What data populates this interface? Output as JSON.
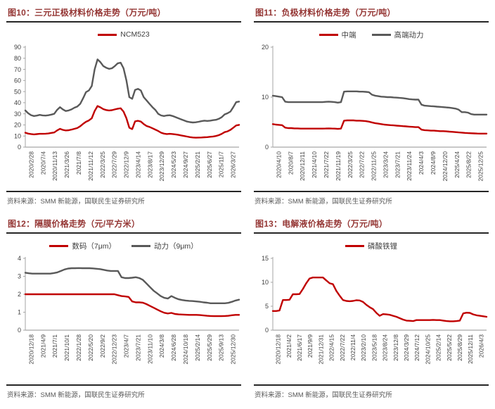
{
  "page": {
    "background": "#ffffff"
  },
  "palette": {
    "title_red": "#953735",
    "line_red": "#C00000",
    "line_gray": "#595959",
    "rule_dark": "#262626",
    "axis_gray": "#A6A6A6",
    "tick_text": "#404040",
    "source_gray": "#595959"
  },
  "chart_data": [
    {
      "id": "图10",
      "type": "line",
      "title": "图10：三元正极材料价格走势（万元/吨）",
      "source": "资料来源：SMM 新能源，国联民生证券研究所",
      "ylim": [
        0,
        90
      ],
      "ytick_step": 10,
      "grid": false,
      "legend_position": "top-center",
      "x_labels": [
        "2020/2/28",
        "2020/7/4",
        "2020/11/13",
        "2021/3/26",
        "2021/7/8",
        "2021/11/12",
        "2022/3/25",
        "2022/7/29",
        "2022/12/9",
        "2023/4/14",
        "2023/8/17",
        "2023/12/29",
        "2024/5/23",
        "2024/9/27",
        "2025/2/21",
        "2025/6/27",
        "2025/11/7",
        "2026/3/27"
      ],
      "series": [
        {
          "name": "",
          "color": "#595959",
          "in_legend": false,
          "values": [
            33,
            30.5,
            28.8,
            28,
            28.4,
            29,
            28.6,
            28.4,
            28.7,
            29.3,
            30,
            33.5,
            36,
            34,
            32.5,
            33,
            34,
            35.5,
            36.5,
            39,
            44,
            49.5,
            51,
            55,
            70,
            79,
            76.5,
            73,
            71.5,
            70.5,
            71,
            73,
            75.5,
            76,
            71,
            60,
            45,
            43.5,
            51.5,
            52.5,
            51,
            45,
            42,
            39,
            36,
            33.5,
            30,
            28.5,
            28,
            28.5,
            28.7,
            28,
            27,
            26,
            25,
            24,
            23,
            22.5,
            22.2,
            22.4,
            22.8,
            23.4,
            23.8,
            23.6,
            23.8,
            24.3,
            24.6,
            25.5,
            27,
            29.5,
            30.5,
            32,
            36,
            40.5,
            41
          ]
        },
        {
          "name": "NCM523",
          "color": "#C00000",
          "in_legend": true,
          "values": [
            13,
            12.2,
            11.8,
            11.5,
            11.7,
            12,
            12,
            12.1,
            12.3,
            12.8,
            13.2,
            15,
            16.5,
            15.5,
            15,
            15.2,
            15.8,
            16.5,
            17.2,
            18.8,
            21,
            22.8,
            24,
            26,
            32.5,
            37,
            35.8,
            34.2,
            33.4,
            33,
            33.3,
            34,
            34.6,
            35,
            32,
            26,
            17.5,
            16.2,
            23.2,
            23.7,
            23,
            20.8,
            19,
            18.2,
            17,
            15.8,
            14.5,
            13,
            12.2,
            11.8,
            12,
            11.8,
            11.5,
            11,
            10.5,
            10,
            9.5,
            9,
            8.7,
            8.5,
            8.6,
            8.7,
            8.9,
            9,
            9.3,
            9.6,
            10,
            10.8,
            12,
            13.5,
            14.2,
            15.5,
            17.5,
            19.5,
            20
          ]
        }
      ]
    },
    {
      "id": "图11",
      "type": "line",
      "title": "图11：负极材料价格走势（万元/吨）",
      "source": "资料来源：SMM 新能源，国联民生证券研究所",
      "ylim": [
        0,
        20
      ],
      "ytick_step": 10,
      "grid": false,
      "legend_position": "top-center",
      "x_labels": [
        "2020/4/10",
        "2020/8/7",
        "2020/12/11",
        "2021/4/10",
        "2021/7/22",
        "2021/11/19",
        "2022/3/25",
        "2022/7/22",
        "2022/11/25",
        "2023/3/24",
        "2023/7/21",
        "2023/11/24",
        "2024/4/3",
        "2024/8/9",
        "2024/12/20",
        "2025/4/24",
        "2025/8/22",
        "2025/12/25"
      ],
      "series": [
        {
          "name": "中端",
          "color": "#C00000",
          "in_legend": true,
          "values": [
            4.6,
            4.5,
            4.45,
            4.4,
            3.9,
            3.8,
            3.8,
            3.75,
            3.75,
            3.7,
            3.7,
            3.7,
            3.7,
            3.7,
            3.7,
            3.7,
            3.7,
            3.72,
            3.75,
            3.72,
            3.7,
            3.65,
            3.7,
            5.3,
            5.35,
            5.35,
            5.35,
            5.3,
            5.3,
            5.25,
            5.2,
            5.1,
            4.95,
            4.8,
            4.7,
            4.6,
            4.5,
            4.45,
            4.4,
            4.35,
            4.3,
            4.25,
            4.2,
            4.15,
            4.1,
            4.05,
            4.0,
            4.0,
            3.5,
            3.4,
            3.35,
            3.3,
            3.3,
            3.25,
            3.2,
            3.2,
            3.15,
            3.1,
            3.05,
            3.0,
            2.95,
            2.9,
            2.85,
            2.8,
            2.78,
            2.75,
            2.72,
            2.7,
            2.7,
            2.7
          ]
        },
        {
          "name": "高端动力",
          "color": "#595959",
          "in_legend": true,
          "values": [
            10.3,
            10.2,
            10.1,
            10.0,
            9.1,
            9.0,
            9.0,
            9.0,
            9.0,
            9.0,
            9.0,
            9.0,
            9.0,
            9.0,
            9.0,
            9.0,
            9.0,
            9.05,
            9.1,
            9.05,
            9.0,
            8.9,
            9.0,
            11.1,
            11.15,
            11.15,
            11.15,
            11.15,
            11.1,
            11.1,
            11.05,
            11.0,
            10.5,
            10.3,
            10.2,
            10.1,
            10.05,
            10.0,
            10.0,
            9.95,
            9.9,
            9.85,
            9.8,
            9.7,
            9.6,
            9.55,
            9.5,
            9.5,
            8.5,
            8.3,
            8.25,
            8.2,
            8.15,
            8.1,
            8.05,
            8.0,
            7.95,
            7.9,
            7.8,
            7.7,
            7.5,
            7.0,
            7.0,
            6.9,
            6.6,
            6.5,
            6.5,
            6.5,
            6.5,
            6.5
          ]
        }
      ]
    },
    {
      "id": "图12",
      "type": "line",
      "title": "图12：隔膜价格走势（元/平方米）",
      "source": "资料来源：SMM 新能源，国联民生证券研究所",
      "ylim": [
        0,
        4
      ],
      "ytick_step": 1,
      "grid": false,
      "legend_position": "top-center",
      "x_labels": [
        "2020/12/18",
        "2021/4/9",
        "2021/7/1",
        "2021/10/1",
        "2022/1/28",
        "2022/5/20",
        "2022/9/2",
        "2022/12/23",
        "2023/4/7",
        "2023/7/21",
        "2023/11/10",
        "2024/3/8",
        "2024/6/28",
        "2024/10/18",
        "2025/2/14",
        "2025/5/29",
        "2025/9/13",
        "2025/12/30"
      ],
      "series": [
        {
          "name": "数码（7μm）",
          "color": "#C00000",
          "in_legend": true,
          "values": [
            2.0,
            2.0,
            2.0,
            2.0,
            2.0,
            2.0,
            2.0,
            2.0,
            2.0,
            2.0,
            2.0,
            2.0,
            2.0,
            2.0,
            2.0,
            2.0,
            2.0,
            2.0,
            2.0,
            2.0,
            2.0,
            2.0,
            2.0,
            2.0,
            2.0,
            2.0,
            1.95,
            1.9,
            1.88,
            1.85,
            1.6,
            1.55,
            1.55,
            1.53,
            1.45,
            1.35,
            1.25,
            1.15,
            1.05,
            0.97,
            0.93,
            0.96,
            0.9,
            0.88,
            0.87,
            0.86,
            0.85,
            0.85,
            0.85,
            0.84,
            0.82,
            0.8,
            0.79,
            0.78,
            0.78,
            0.78,
            0.79,
            0.8,
            0.83,
            0.85,
            0.85
          ]
        },
        {
          "name": "动力（9μm）",
          "color": "#595959",
          "in_legend": true,
          "values": [
            3.2,
            3.17,
            3.15,
            3.15,
            3.15,
            3.15,
            3.15,
            3.15,
            3.18,
            3.22,
            3.3,
            3.38,
            3.43,
            3.45,
            3.45,
            3.46,
            3.45,
            3.45,
            3.45,
            3.44,
            3.42,
            3.4,
            3.36,
            3.32,
            3.3,
            3.3,
            3.3,
            2.95,
            2.9,
            2.9,
            2.92,
            2.95,
            2.9,
            2.8,
            2.6,
            2.4,
            2.2,
            2.05,
            1.9,
            1.8,
            1.76,
            1.9,
            1.8,
            1.72,
            1.68,
            1.65,
            1.63,
            1.62,
            1.6,
            1.58,
            1.55,
            1.53,
            1.5,
            1.5,
            1.5,
            1.5,
            1.5,
            1.52,
            1.58,
            1.65,
            1.7
          ]
        }
      ]
    },
    {
      "id": "图13",
      "type": "line",
      "title": "图13：电解液价格走势（万元/吨）",
      "source": "资料来源：SMM 新能源，国联民生证券研究所",
      "ylim": [
        0,
        15
      ],
      "ytick_step": 5,
      "grid": false,
      "legend_position": "top-center",
      "x_labels": [
        "2020/12/18",
        "2021/4/2",
        "2021/6/17",
        "2021/9/9",
        "2021/12/31",
        "2022/4/15",
        "2022/7/22",
        "2022/11/4",
        "2023/2/10",
        "2023/5/18",
        "2023/8/24",
        "2023/12/8",
        "2024/3/29",
        "2024/7/12",
        "2024/10/25",
        "2025/2/14",
        "2025/5/22",
        "2025/8/29",
        "2025/12/11",
        "2026/4/3"
      ],
      "series": [
        {
          "name": "磷酸铁锂",
          "color": "#C00000",
          "in_legend": true,
          "values": [
            4.0,
            4.0,
            4.1,
            6.3,
            6.3,
            6.35,
            7.5,
            7.5,
            7.55,
            8.6,
            9.8,
            10.8,
            11.0,
            11.0,
            11.0,
            11.0,
            10.4,
            9.8,
            9.6,
            8.2,
            7.2,
            6.3,
            6.1,
            6.05,
            6.1,
            6.25,
            6.2,
            5.9,
            5.3,
            4.8,
            4.4,
            3.6,
            3.0,
            3.35,
            3.3,
            3.2,
            3.0,
            2.8,
            2.5,
            2.2,
            2.0,
            1.95,
            1.9,
            2.1,
            2.1,
            2.1,
            2.1,
            2.1,
            2.15,
            2.1,
            2.1,
            2.0,
            1.9,
            1.85,
            1.85,
            1.9,
            2.0,
            3.5,
            3.65,
            3.6,
            3.3,
            3.1,
            3.0,
            2.9,
            2.8
          ]
        }
      ]
    }
  ]
}
